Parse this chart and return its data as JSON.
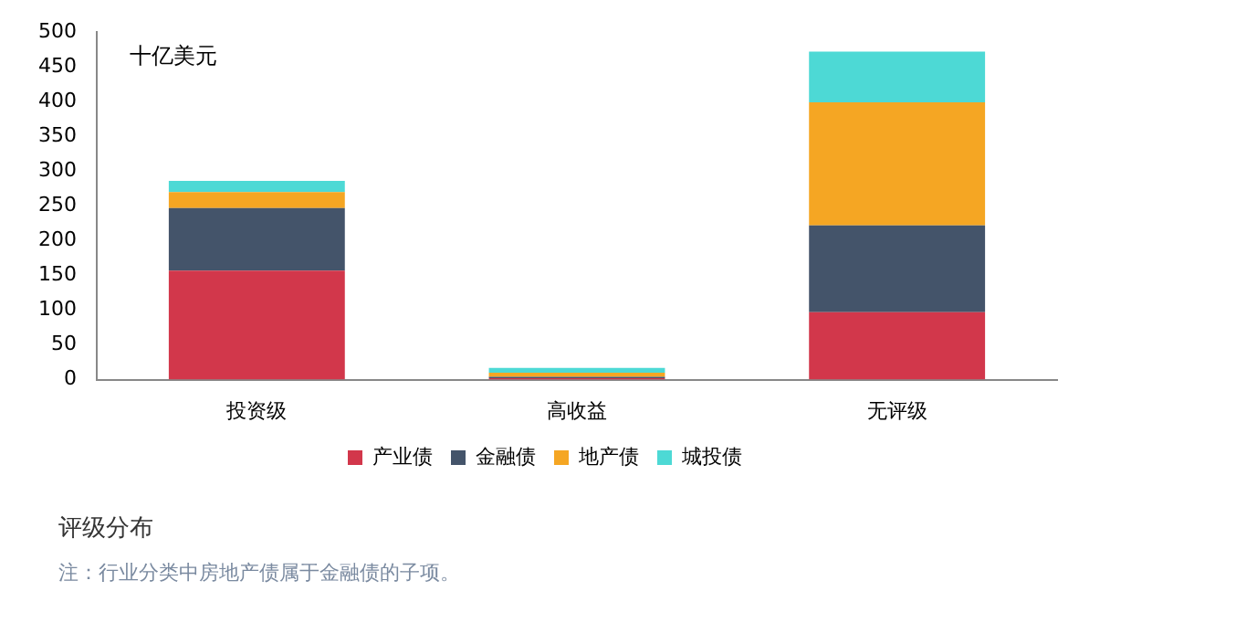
{
  "chart_data": {
    "type": "bar",
    "title": "评级分布",
    "ylabel": "十亿美元",
    "categories": [
      "投资级",
      "高收益",
      "无评级"
    ],
    "stacked": true,
    "ylim": [
      0,
      500
    ],
    "yticks": [
      0,
      50,
      100,
      150,
      200,
      250,
      300,
      350,
      400,
      450,
      500
    ],
    "grid": false,
    "legend": "bottom",
    "series": [
      {
        "name": "产业债",
        "color": "#d2374b",
        "values": [
          157,
          2,
          97
        ]
      },
      {
        "name": "金融债",
        "color": "#44546a",
        "values": [
          90,
          2,
          125
        ]
      },
      {
        "name": "地产债",
        "color": "#f5a623",
        "values": [
          23,
          6,
          177
        ]
      },
      {
        "name": "城投债",
        "color": "#4dd9d5",
        "values": [
          16,
          7,
          73
        ]
      }
    ],
    "annotations": [
      "注：行业分类中房地产债属于金融债的子项。"
    ]
  }
}
